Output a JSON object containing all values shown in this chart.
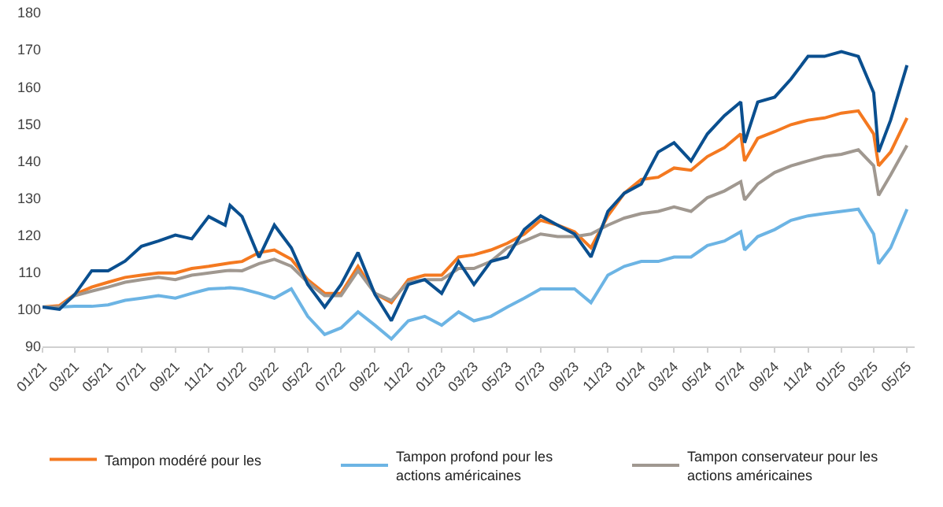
{
  "chart_data": {
    "type": "line",
    "x": [
      "2021-01",
      "2021-02",
      "2021-03",
      "2021-04",
      "2021-05",
      "2021-06",
      "2021-07",
      "2021-08",
      "2021-09",
      "2021-10",
      "2021-11",
      "2021-12",
      "2021-12-10",
      "2022-01",
      "2022-02",
      "2022-03",
      "2022-04",
      "2022-05",
      "2022-06",
      "2022-07",
      "2022-08",
      "2022-09",
      "2022-10",
      "2022-11",
      "2022-12",
      "2023-01",
      "2023-02",
      "2023-03",
      "2023-04",
      "2023-05",
      "2023-06",
      "2023-07",
      "2023-08",
      "2023-09",
      "2023-10",
      "2023-11",
      "2023-12",
      "2024-01",
      "2024-02",
      "2024-03",
      "2024-04",
      "2024-05",
      "2024-06",
      "2024-07",
      "2024-07-08",
      "2024-08",
      "2024-09",
      "2024-10",
      "2024-11",
      "2024-12",
      "2025-01",
      "2025-02",
      "2025-03",
      "2025-03-10",
      "2025-04",
      "2025-05"
    ],
    "series": [
      {
        "name": "Tampon modéré pour les",
        "color": "#f47920",
        "values": [
          100.6,
          101,
          104,
          106,
          107.3,
          108.6,
          109.2,
          109.8,
          109.8,
          111,
          111.6,
          112.3,
          112.5,
          112.9,
          115.3,
          116,
          113.5,
          108,
          104.3,
          104.3,
          111.6,
          104.3,
          101.8,
          108,
          109.2,
          109.2,
          114.1,
          114.7,
          116,
          117.8,
          120.3,
          124,
          122.7,
          120.9,
          116.6,
          125.2,
          131.3,
          135,
          135.6,
          138.1,
          137.5,
          141.2,
          143.6,
          147.3,
          140,
          146.1,
          147.9,
          149.8,
          151,
          151.6,
          152.9,
          153.5,
          147.3,
          138.7,
          142.4,
          151.6
        ]
      },
      {
        "name": "Tampon profond pour les actions américaines",
        "color": "#6cb4e4",
        "values": [
          100.6,
          100.6,
          100.8,
          100.8,
          101.2,
          102.4,
          103,
          103.7,
          103,
          104.3,
          105.5,
          105.7,
          105.8,
          105.5,
          104.3,
          103,
          105.5,
          98.1,
          93.2,
          95,
          99.3,
          95.7,
          92,
          96.9,
          98.1,
          95.7,
          99.3,
          96.9,
          98.1,
          100.6,
          103,
          105.5,
          105.5,
          105.5,
          101.8,
          109.2,
          111.6,
          112.9,
          112.9,
          114.1,
          114.1,
          117.2,
          118.4,
          120.9,
          116,
          119.6,
          121.5,
          124,
          125.2,
          125.8,
          126.4,
          127,
          120.3,
          112.3,
          116.6,
          127
        ]
      },
      {
        "name": "Tampon conservateur pour les actions américaines",
        "color": "#a09890",
        "values": [
          100.6,
          100.6,
          103.7,
          104.9,
          106,
          107.3,
          108,
          108.6,
          108,
          109.2,
          109.8,
          110.4,
          110.5,
          110.4,
          112.3,
          113.5,
          111.6,
          107.3,
          103.7,
          103.7,
          110.4,
          104.3,
          102.4,
          107.3,
          108,
          108,
          111,
          111,
          112.9,
          116.6,
          118.4,
          120.3,
          119.6,
          119.6,
          120.3,
          122.7,
          124.6,
          125.8,
          126.4,
          127.6,
          126.4,
          130.1,
          131.9,
          134.4,
          129.5,
          133.8,
          136.9,
          138.7,
          140,
          141.2,
          141.8,
          143,
          138.7,
          130.7,
          136.2,
          144.2
        ]
      },
      {
        "color": "#0a4f8f",
        "values": [
          100.6,
          100,
          104,
          110.4,
          110.4,
          113,
          117,
          118.4,
          120,
          119,
          125,
          122.7,
          128,
          125,
          114,
          122.7,
          116.6,
          106.7,
          100.6,
          106.7,
          115.3,
          104,
          96.9,
          106.7,
          108,
          104.3,
          112.9,
          106.7,
          112.9,
          114.1,
          121.5,
          125.2,
          122.7,
          120.3,
          114.1,
          126.4,
          131.3,
          133.8,
          142.4,
          144.9,
          140,
          147.3,
          152.2,
          155.9,
          144.9,
          155.9,
          157.2,
          162.1,
          168.2,
          168.2,
          169.5,
          168.2,
          158.4,
          142.4,
          151,
          165.8
        ]
      }
    ],
    "xlim": [
      "2021-01-01",
      "2025-05-15"
    ],
    "xticks": [
      {
        "value": "2021-01",
        "label": "01/21"
      },
      {
        "value": "2021-03",
        "label": "03/21"
      },
      {
        "value": "2021-05",
        "label": "05/21"
      },
      {
        "value": "2021-07",
        "label": "07/21"
      },
      {
        "value": "2021-09",
        "label": "09/21"
      },
      {
        "value": "2021-11",
        "label": "11/21"
      },
      {
        "value": "2022-01",
        "label": "01/22"
      },
      {
        "value": "2022-03",
        "label": "03/22"
      },
      {
        "value": "2022-05",
        "label": "05/22"
      },
      {
        "value": "2022-07",
        "label": "07/22"
      },
      {
        "value": "2022-09",
        "label": "09/22"
      },
      {
        "value": "2022-11",
        "label": "11/22"
      },
      {
        "value": "2023-01",
        "label": "01/23"
      },
      {
        "value": "2023-03",
        "label": "03/23"
      },
      {
        "value": "2023-05",
        "label": "05/23"
      },
      {
        "value": "2023-07",
        "label": "07/23"
      },
      {
        "value": "2023-09",
        "label": "09/23"
      },
      {
        "value": "2023-11",
        "label": "11/23"
      },
      {
        "value": "2024-01",
        "label": "01/24"
      },
      {
        "value": "2024-03",
        "label": "03/24"
      },
      {
        "value": "2024-05",
        "label": "05/24"
      },
      {
        "value": "2024-07",
        "label": "07/24"
      },
      {
        "value": "2024-09",
        "label": "09/24"
      },
      {
        "value": "2024-11",
        "label": "11/24"
      },
      {
        "value": "2025-01",
        "label": "01/25"
      },
      {
        "value": "2025-03",
        "label": "03/25"
      },
      {
        "value": "2025-05",
        "label": "05/25"
      }
    ],
    "ylim": [
      90,
      180
    ],
    "yticks": [
      90,
      100,
      110,
      120,
      130,
      140,
      150,
      160,
      170,
      180
    ],
    "grid": false,
    "legend": "bottom",
    "marker": "none",
    "line_style": "solid"
  }
}
